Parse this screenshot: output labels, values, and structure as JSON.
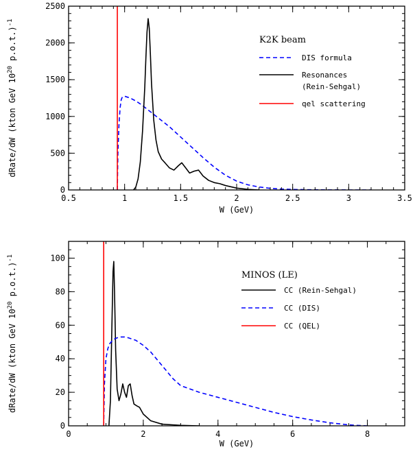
{
  "chart_data": [
    {
      "type": "line",
      "title": "",
      "xlabel": "W (GeV)",
      "ylabel": "dRate/dW  (kton  GeV  10",
      "ylabel_sup": "20",
      "ylabel_tail": " p.o.t.)",
      "ylabel_exp": "-1",
      "xlim": [
        0.5,
        3.5
      ],
      "ylim": [
        0,
        2500
      ],
      "xticks": [
        0.5,
        1,
        1.5,
        2,
        2.5,
        3,
        3.5
      ],
      "xtick_labels": [
        "0.5",
        "1",
        "1.5",
        "2",
        "2.5",
        "3",
        "3.5"
      ],
      "yticks": [
        0,
        500,
        1000,
        1500,
        2000,
        2500
      ],
      "ytick_labels": [
        "0",
        "500",
        "1000",
        "1500",
        "2000",
        "2500"
      ],
      "x_minor": 0.1,
      "y_minor": 100,
      "legend_title": "K2K beam",
      "legend_placement": "top-right",
      "series": [
        {
          "name": "DIS  formula",
          "color": "#0000ff",
          "style": "dashed",
          "x": [
            0.935,
            0.94,
            0.95,
            0.96,
            0.97,
            0.98,
            1.0,
            1.05,
            1.1,
            1.15,
            1.2,
            1.3,
            1.4,
            1.5,
            1.6,
            1.7,
            1.8,
            1.9,
            2.0,
            2.1,
            2.2,
            2.3,
            2.4,
            2.5,
            2.6,
            2.7,
            2.8,
            2.9,
            3.0,
            3.2
          ],
          "y": [
            0,
            500,
            900,
            1120,
            1230,
            1265,
            1275,
            1250,
            1210,
            1160,
            1100,
            980,
            860,
            720,
            580,
            440,
            310,
            200,
            120,
            70,
            40,
            22,
            12,
            7,
            4,
            2,
            1,
            0.5,
            0,
            0
          ]
        },
        {
          "name": "Resonances",
          "name_line2": "(Rein-Sehgal)",
          "color": "#000000",
          "style": "solid",
          "x": [
            1.08,
            1.1,
            1.12,
            1.14,
            1.16,
            1.18,
            1.19,
            1.2,
            1.21,
            1.22,
            1.23,
            1.24,
            1.26,
            1.28,
            1.3,
            1.33,
            1.36,
            1.4,
            1.44,
            1.48,
            1.51,
            1.54,
            1.58,
            1.62,
            1.66,
            1.7,
            1.75,
            1.8,
            1.85,
            1.9,
            2.0,
            2.1,
            2.2
          ],
          "y": [
            0,
            40,
            150,
            380,
            800,
            1400,
            1800,
            2150,
            2330,
            2200,
            1850,
            1450,
            950,
            680,
            520,
            420,
            370,
            300,
            270,
            330,
            370,
            310,
            230,
            255,
            270,
            190,
            130,
            100,
            85,
            60,
            25,
            8,
            0
          ]
        },
        {
          "name": "qel scattering",
          "color": "#ff0000",
          "style": "solid",
          "x": [
            0.935,
            0.935
          ],
          "y": [
            0,
            2500
          ]
        }
      ]
    },
    {
      "type": "line",
      "title": "",
      "xlabel": "W (GeV)",
      "ylabel": "dRate/dW  (kton GeV 10",
      "ylabel_sup": "20",
      "ylabel_tail": " p.o.t.)",
      "ylabel_exp": "-1",
      "xlim": [
        0,
        9
      ],
      "ylim": [
        0,
        110
      ],
      "xticks": [
        0,
        2,
        4,
        6,
        8
      ],
      "xtick_labels": [
        "0",
        "2",
        "4",
        "6",
        "8"
      ],
      "yticks": [
        0,
        20,
        40,
        60,
        80,
        100
      ],
      "ytick_labels": [
        "0",
        "20",
        "40",
        "60",
        "80",
        "100"
      ],
      "x_minor": 0.5,
      "y_minor": 5,
      "legend_title": "MINOS (LE)",
      "legend_placement": "top-right",
      "series": [
        {
          "name": "CC   (Rein-Sehgal)",
          "color": "#000000",
          "style": "solid",
          "x": [
            1.08,
            1.12,
            1.16,
            1.19,
            1.21,
            1.23,
            1.26,
            1.3,
            1.35,
            1.4,
            1.45,
            1.5,
            1.55,
            1.6,
            1.65,
            1.7,
            1.75,
            1.82,
            1.9,
            2.0,
            2.2,
            2.5,
            3.0,
            3.5
          ],
          "y": [
            0,
            15,
            60,
            92,
            98,
            80,
            45,
            22,
            15,
            19,
            25,
            20,
            17,
            24,
            25,
            18,
            13,
            12,
            11,
            7,
            3,
            1,
            0.3,
            0
          ]
        },
        {
          "name": "CC   (DIS)",
          "color": "#0000ff",
          "style": "dashed",
          "x": [
            0.94,
            0.96,
            1.0,
            1.05,
            1.1,
            1.2,
            1.3,
            1.4,
            1.5,
            1.6,
            1.8,
            2.0,
            2.2,
            2.5,
            2.8,
            3.0,
            3.5,
            4.0,
            4.5,
            5.0,
            5.5,
            6.0,
            6.5,
            7.0,
            7.5,
            7.7,
            8.0
          ],
          "y": [
            0,
            25,
            40,
            46,
            49,
            51.5,
            52.5,
            53,
            53,
            52.5,
            51,
            48,
            44,
            36,
            28,
            24,
            20,
            17,
            14,
            11,
            8,
            5.5,
            3.5,
            1.8,
            0.6,
            0.3,
            0
          ]
        },
        {
          "name": "CC   (QEL)",
          "color": "#ff0000",
          "style": "solid",
          "x": [
            0.94,
            0.94
          ],
          "y": [
            0,
            110
          ]
        }
      ]
    }
  ]
}
